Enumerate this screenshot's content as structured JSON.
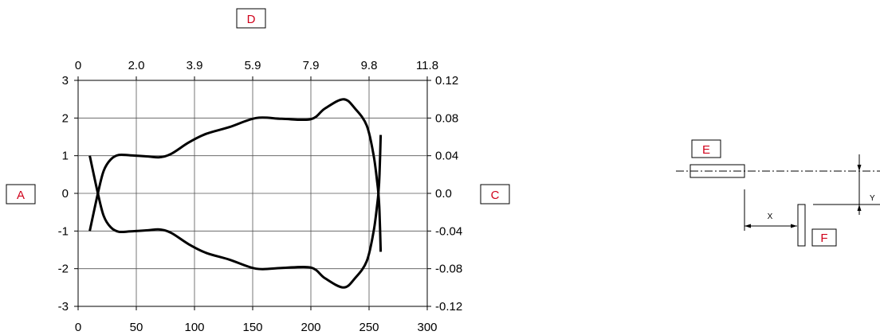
{
  "labels": {
    "a": "A",
    "c": "C",
    "d": "D",
    "e": "E",
    "f": "F",
    "x": "X",
    "y": "Y"
  },
  "axes": {
    "bottom_ticks": [
      "0",
      "50",
      "100",
      "150",
      "200",
      "250",
      "300"
    ],
    "top_ticks": [
      "0",
      "2.0",
      "3.9",
      "5.9",
      "7.9",
      "9.8",
      "11.8"
    ],
    "left_ticks": [
      "3",
      "2",
      "1",
      "0",
      "-1",
      "-2",
      "-3"
    ],
    "right_ticks": [
      "0.12",
      "0.08",
      "0.04",
      "0.0",
      "-0.04",
      "-0.08",
      "-0.12"
    ],
    "x_range": [
      0,
      300
    ],
    "y_range": [
      -3,
      3
    ],
    "grid": true
  },
  "curve": {
    "upper": [
      [
        10,
        -1
      ],
      [
        17,
        0
      ],
      [
        22,
        0.6
      ],
      [
        28,
        0.9
      ],
      [
        35,
        1.02
      ],
      [
        45,
        1.01
      ],
      [
        60,
        0.98
      ],
      [
        70,
        0.96
      ],
      [
        80,
        1.05
      ],
      [
        95,
        1.35
      ],
      [
        110,
        1.58
      ],
      [
        130,
        1.76
      ],
      [
        153,
        2.0
      ],
      [
        175,
        1.98
      ],
      [
        200,
        1.97
      ],
      [
        212,
        2.25
      ],
      [
        228,
        2.5
      ],
      [
        238,
        2.25
      ],
      [
        248,
        1.8
      ],
      [
        254,
        1.0
      ],
      [
        257,
        0.3
      ],
      [
        258,
        0
      ],
      [
        259,
        -0.5
      ],
      [
        260,
        -1.55
      ]
    ],
    "lower": [
      [
        10,
        1
      ],
      [
        17,
        0
      ],
      [
        22,
        -0.6
      ],
      [
        28,
        -0.9
      ],
      [
        35,
        -1.02
      ],
      [
        45,
        -1.01
      ],
      [
        60,
        -0.98
      ],
      [
        70,
        -0.96
      ],
      [
        80,
        -1.05
      ],
      [
        95,
        -1.35
      ],
      [
        110,
        -1.58
      ],
      [
        130,
        -1.76
      ],
      [
        153,
        -2.0
      ],
      [
        175,
        -1.98
      ],
      [
        200,
        -1.97
      ],
      [
        212,
        -2.25
      ],
      [
        228,
        -2.5
      ],
      [
        238,
        -2.25
      ],
      [
        248,
        -1.8
      ],
      [
        254,
        -1.0
      ],
      [
        257,
        -0.3
      ],
      [
        258,
        0
      ],
      [
        259,
        0.5
      ],
      [
        260,
        1.55
      ]
    ]
  }
}
